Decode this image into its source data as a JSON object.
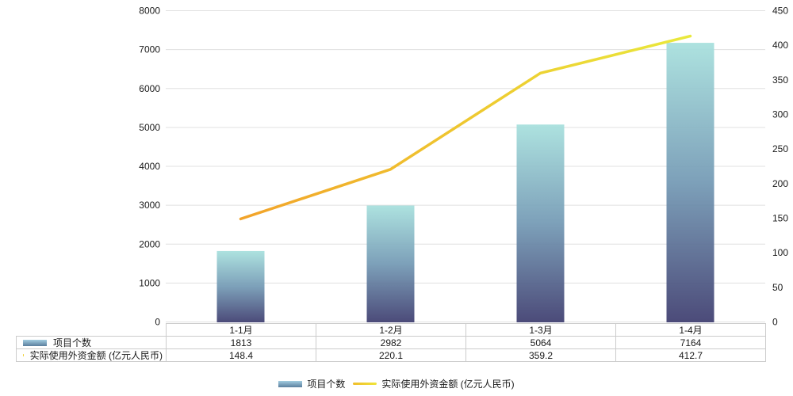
{
  "chart_data": {
    "type": "combo",
    "categories": [
      "1-1月",
      "1-2月",
      "1-3月",
      "1-4月"
    ],
    "series": [
      {
        "name": "项目个数",
        "type": "bar",
        "axis": "left",
        "values": [
          1813,
          2982,
          5064,
          7164
        ],
        "gradient": {
          "top": "#a7e0dd",
          "mid": "#7399b4",
          "bottom": "#3e3d6f"
        }
      },
      {
        "name": "实际使用外资金额 (亿元人民币)",
        "type": "line",
        "axis": "right",
        "values": [
          148.4,
          220.1,
          359.2,
          412.7
        ],
        "gradient": {
          "start": "#f2a32a",
          "mid": "#eecb30",
          "end": "#e9e93c"
        }
      }
    ],
    "left_axis": {
      "min": 0,
      "max": 8000,
      "interval": 1000,
      "ticks": [
        0,
        1000,
        2000,
        3000,
        4000,
        5000,
        6000,
        7000,
        8000
      ]
    },
    "right_axis": {
      "min": 0,
      "max": 450,
      "interval": 50,
      "ticks": [
        0,
        50,
        100,
        150,
        200,
        250,
        300,
        350,
        400,
        450
      ]
    },
    "grid": "on",
    "grid_color": "#e0e0e0",
    "legend_position": "bottom",
    "title": "",
    "xlabel": "",
    "ylabel": ""
  },
  "table": {
    "rows": [
      {
        "label": "项目个数",
        "swatch": "bar",
        "values": [
          "1813",
          "2982",
          "5064",
          "7164"
        ]
      },
      {
        "label": "实际使用外资金额 (亿元人民币)",
        "swatch": "line",
        "values": [
          "148.4",
          "220.1",
          "359.2",
          "412.7"
        ]
      }
    ]
  },
  "legend": {
    "items": [
      {
        "label": "项目个数",
        "swatch": "bar"
      },
      {
        "label": "实际使用外资金额 (亿元人民币)",
        "swatch": "line"
      }
    ]
  }
}
